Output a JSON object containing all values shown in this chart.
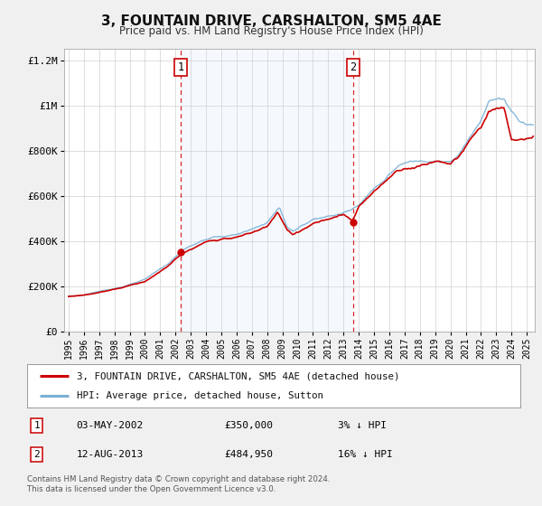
{
  "title": "3, FOUNTAIN DRIVE, CARSHALTON, SM5 4AE",
  "subtitle": "Price paid vs. HM Land Registry's House Price Index (HPI)",
  "legend_line1": "3, FOUNTAIN DRIVE, CARSHALTON, SM5 4AE (detached house)",
  "legend_line2": "HPI: Average price, detached house, Sutton",
  "annotation1_date": "03-MAY-2002",
  "annotation1_price": "£350,000",
  "annotation1_hpi": "3% ↓ HPI",
  "annotation1_year": 2002.35,
  "annotation1_value": 350000,
  "annotation2_date": "12-AUG-2013",
  "annotation2_price": "£484,950",
  "annotation2_hpi": "16% ↓ HPI",
  "annotation2_year": 2013.62,
  "annotation2_value": 484950,
  "shade_color": "#cce0f5",
  "line_color_red": "#cc0000",
  "line_color_blue": "#7ab0d4",
  "marker_color": "#cc0000",
  "vline_color": "#cc0000",
  "grid_color": "#cccccc",
  "bg_color": "#f0f0f0",
  "plot_bg_color": "#ffffff",
  "footer": "Contains HM Land Registry data © Crown copyright and database right 2024.\nThis data is licensed under the Open Government Licence v3.0.",
  "ylim": [
    0,
    1250000
  ],
  "xlim_start": 1994.7,
  "xlim_end": 2025.5
}
